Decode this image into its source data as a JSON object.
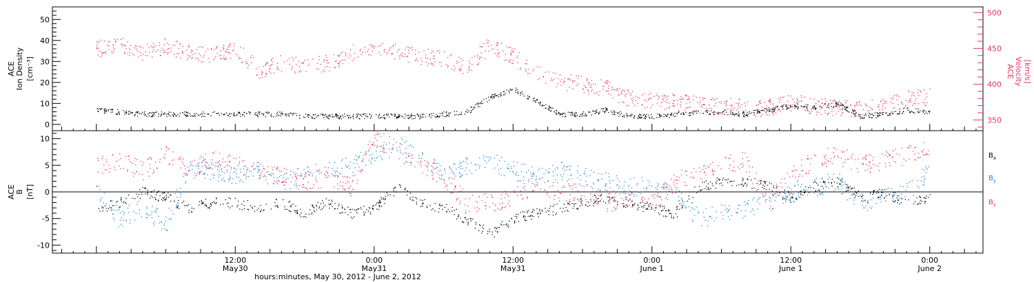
{
  "colors": {
    "density": "#000000",
    "velocity": "#e8335f",
    "bx": "#000000",
    "by": "#1a86d6",
    "bz": "#e8335f",
    "axes": "#000000"
  },
  "chart_data": [
    {
      "type": "scatter",
      "title": "",
      "left_axis_label": [
        "ACE",
        "Ion Density",
        "[cm⁻³]"
      ],
      "right_axis_label": [
        "ACE",
        "Velocity",
        "[km/s]"
      ],
      "left_ticks": [
        "0",
        "10",
        "20",
        "30",
        "40",
        "50"
      ],
      "right_ticks": [
        "350",
        "400",
        "450",
        "500"
      ],
      "ylim_left": [
        -3,
        56
      ],
      "ylim_right": [
        335,
        508
      ],
      "x_hours_range": [
        -3.8,
        76.6
      ],
      "series": [
        {
          "name": "Ion Density",
          "axis": "left",
          "color": "#000000",
          "x": [
            0,
            2,
            4,
            6,
            8,
            10,
            12,
            14,
            16,
            18,
            20,
            22,
            24,
            26,
            28,
            30,
            32,
            34,
            36,
            38,
            40,
            42,
            44,
            46,
            48,
            50,
            52,
            54,
            56,
            58,
            60,
            62,
            64,
            66,
            68,
            70,
            72
          ],
          "y": [
            7,
            6,
            5,
            5,
            5,
            5,
            5,
            5,
            5,
            4,
            4,
            4,
            4,
            4,
            4,
            5,
            6,
            13,
            17,
            11,
            5,
            5,
            7,
            4,
            4,
            5,
            6,
            6,
            5,
            7,
            9,
            8,
            10,
            4,
            5,
            7,
            6
          ]
        },
        {
          "name": "Velocity",
          "axis": "right",
          "color": "#e8335f",
          "x": [
            0,
            2,
            4,
            6,
            8,
            10,
            12,
            14,
            16,
            18,
            20,
            22,
            24,
            26,
            28,
            30,
            32,
            34,
            36,
            38,
            40,
            42,
            44,
            46,
            48,
            50,
            52,
            54,
            56,
            58,
            60,
            62,
            64,
            66,
            68,
            70,
            72
          ],
          "y": [
            450,
            455,
            445,
            455,
            445,
            440,
            450,
            420,
            430,
            425,
            430,
            445,
            450,
            445,
            440,
            435,
            425,
            455,
            440,
            415,
            405,
            400,
            395,
            380,
            378,
            375,
            372,
            370,
            368,
            367,
            375,
            370,
            368,
            365,
            368,
            380,
            382
          ]
        }
      ]
    },
    {
      "type": "scatter",
      "title": "",
      "xlabel": "hours:minutes, May 30, 2012 - June  2, 2012",
      "left_axis_label": [
        "ACE",
        "B",
        "[nT]"
      ],
      "left_ticks": [
        "-10",
        "-5",
        "0",
        "5",
        "10"
      ],
      "ylim": [
        -11.5,
        11.5
      ],
      "x_hours_range": [
        -3.8,
        76.6
      ],
      "x_ticks": [
        {
          "hour": 12,
          "time": "12:00",
          "day": "May30"
        },
        {
          "hour": 24,
          "time": "0:00",
          "day": "May31"
        },
        {
          "hour": 36,
          "time": "12:00",
          "day": "May31"
        },
        {
          "hour": 48,
          "time": "0:00",
          "day": "June 1"
        },
        {
          "hour": 60,
          "time": "12:00",
          "day": "June 1"
        },
        {
          "hour": 72,
          "time": "0:00",
          "day": "June 2"
        }
      ],
      "legend": [
        {
          "base": "B",
          "sub": "x",
          "color": "#000000"
        },
        {
          "base": "B",
          "sub": "y",
          "color": "#1a86d6"
        },
        {
          "base": "B",
          "sub": "z",
          "color": "#e8335f"
        }
      ],
      "series": [
        {
          "name": "Bx",
          "color": "#000000",
          "x": [
            0,
            2,
            4,
            6,
            8,
            10,
            12,
            14,
            16,
            18,
            20,
            22,
            24,
            26,
            28,
            30,
            32,
            34,
            36,
            38,
            40,
            42,
            44,
            46,
            48,
            50,
            52,
            54,
            56,
            58,
            60,
            62,
            64,
            66,
            68,
            70,
            72
          ],
          "y": [
            -3,
            -2,
            0,
            -1,
            -3,
            -2,
            -2,
            -3,
            -2,
            -4,
            -2,
            -4,
            -3,
            1,
            -2,
            -3,
            -5,
            -8,
            -5,
            -4,
            -3,
            -2,
            -1,
            -2,
            -3,
            -4,
            1,
            2,
            2,
            1,
            -1,
            1,
            2,
            -1,
            0,
            -2,
            -1
          ]
        },
        {
          "name": "By",
          "color": "#1a86d6",
          "x": [
            0,
            2,
            4,
            6,
            8,
            10,
            12,
            14,
            16,
            18,
            20,
            22,
            24,
            26,
            28,
            30,
            32,
            34,
            36,
            38,
            40,
            42,
            44,
            46,
            48,
            50,
            52,
            54,
            56,
            58,
            60,
            62,
            64,
            66,
            68,
            70,
            72
          ],
          "y": [
            0,
            -5,
            -3,
            -6,
            5,
            4,
            3,
            4,
            2,
            3,
            4,
            5,
            7,
            9,
            6,
            4,
            5,
            6,
            4,
            3,
            4,
            3,
            2,
            1,
            1,
            0,
            -5,
            -4,
            -3,
            -2,
            0,
            1,
            2,
            -2,
            -1,
            0,
            4
          ]
        },
        {
          "name": "Bz",
          "color": "#e8335f",
          "x": [
            0,
            2,
            4,
            6,
            8,
            10,
            12,
            14,
            16,
            18,
            20,
            22,
            24,
            26,
            28,
            30,
            32,
            34,
            36,
            38,
            40,
            42,
            44,
            46,
            48,
            50,
            52,
            54,
            56,
            58,
            60,
            62,
            64,
            66,
            68,
            70,
            72
          ],
          "y": [
            5,
            6,
            4,
            7,
            4,
            6,
            5,
            4,
            3,
            2,
            3,
            1,
            10,
            8,
            5,
            3,
            -2,
            -2,
            -1,
            1,
            0,
            0,
            -2,
            -1,
            -2,
            2,
            4,
            5,
            6,
            -2,
            3,
            6,
            7,
            5,
            6,
            7,
            8
          ]
        }
      ]
    }
  ]
}
